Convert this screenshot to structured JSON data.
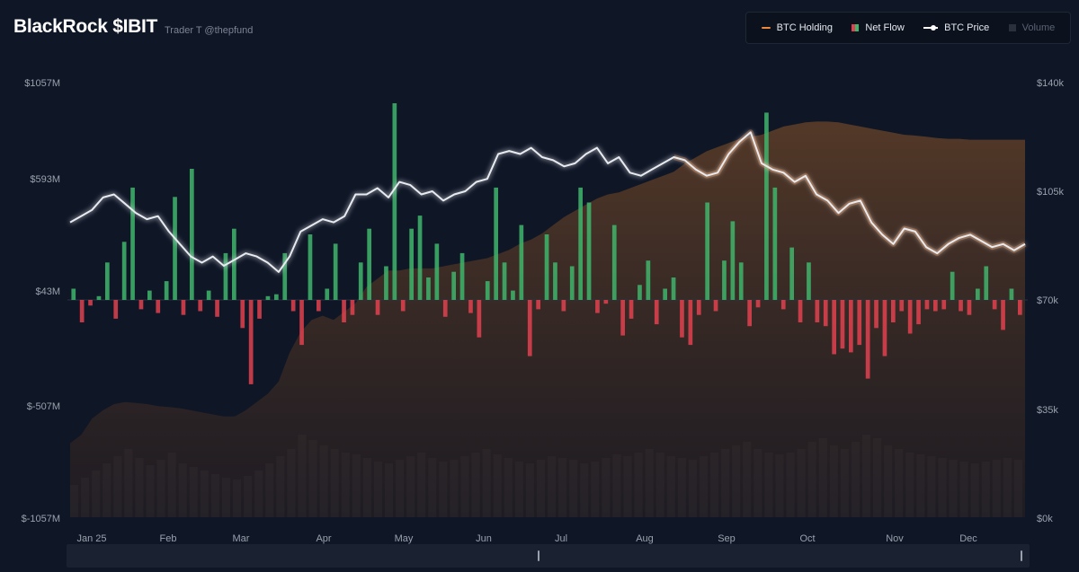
{
  "header": {
    "title": "BlackRock $IBIT",
    "byline": "Trader T @thepfund"
  },
  "legend": {
    "items": [
      {
        "key": "holding",
        "label": "BTC Holding",
        "color": "#f0883e",
        "active": true
      },
      {
        "key": "flow",
        "label": "Net Flow",
        "color_pos": "#3fb56b",
        "color_neg": "#e0414f",
        "active": true
      },
      {
        "key": "price",
        "label": "BTC Price",
        "color": "#ffffff",
        "active": true
      },
      {
        "key": "volume",
        "label": "Volume",
        "color": "#3a3f4b",
        "active": false
      }
    ]
  },
  "chart_data": {
    "type": "bar",
    "left_axis": {
      "ticks": [
        "$1057M",
        "$593M",
        "$43M",
        "$-507M",
        "$-1057M"
      ],
      "range": [
        -1057,
        1057
      ],
      "unit": "M USD"
    },
    "right_axis": {
      "ticks": [
        "$140k",
        "$105k",
        "$70k",
        "$35k",
        "$0k"
      ],
      "range": [
        0,
        140000
      ]
    },
    "months": [
      "Jan 25",
      "Feb",
      "Mar",
      "Apr",
      "May",
      "Jun",
      "Jul",
      "Aug",
      "Sep",
      "Oct",
      "Nov",
      "Dec"
    ],
    "price": {
      "name": "BTC Price",
      "values": [
        95000,
        97000,
        99000,
        103000,
        104000,
        101000,
        98000,
        96000,
        97000,
        92000,
        88000,
        84000,
        82000,
        84000,
        81000,
        83000,
        85000,
        84000,
        82000,
        79000,
        84000,
        92000,
        94000,
        96000,
        95000,
        97000,
        104000,
        104000,
        106000,
        103000,
        108000,
        107000,
        104000,
        105000,
        102000,
        104000,
        105000,
        108000,
        109000,
        117000,
        118000,
        117000,
        119000,
        116000,
        115000,
        113000,
        114000,
        117000,
        119000,
        114000,
        116000,
        111000,
        110000,
        112000,
        114000,
        116000,
        115000,
        112000,
        110000,
        111000,
        117000,
        121000,
        124000,
        114000,
        112000,
        111000,
        108000,
        110000,
        104000,
        102000,
        98000,
        101000,
        102000,
        95000,
        91000,
        88000,
        93000,
        92000,
        87000,
        85000,
        88000,
        90000,
        91000,
        89000,
        87000,
        88000,
        86000,
        88000
      ]
    },
    "holding": {
      "name": "BTC Holding",
      "values": [
        480000,
        500000,
        540000,
        560000,
        575000,
        580000,
        578000,
        575000,
        570000,
        568000,
        565000,
        560000,
        555000,
        550000,
        545000,
        545000,
        560000,
        580000,
        600000,
        630000,
        700000,
        750000,
        780000,
        790000,
        780000,
        800000,
        820000,
        860000,
        880000,
        900000,
        900000,
        905000,
        905000,
        905000,
        910000,
        915000,
        920000,
        925000,
        930000,
        940000,
        950000,
        965000,
        975000,
        990000,
        1010000,
        1030000,
        1045000,
        1060000,
        1075000,
        1085000,
        1090000,
        1100000,
        1110000,
        1120000,
        1130000,
        1140000,
        1160000,
        1175000,
        1190000,
        1200000,
        1210000,
        1220000,
        1225000,
        1230000,
        1240000,
        1250000,
        1255000,
        1260000,
        1262000,
        1262000,
        1260000,
        1255000,
        1250000,
        1245000,
        1240000,
        1235000,
        1230000,
        1228000,
        1225000,
        1222000,
        1220000,
        1220000,
        1218000,
        1218000,
        1218000,
        1218000,
        1218000,
        1218000
      ]
    },
    "net_flow": {
      "name": "Net Flow",
      "unit": "M USD",
      "values": [
        60,
        -120,
        -30,
        20,
        200,
        -100,
        310,
        600,
        -50,
        50,
        -70,
        100,
        550,
        -80,
        700,
        -60,
        50,
        -90,
        250,
        380,
        -150,
        -450,
        -100,
        20,
        30,
        250,
        -60,
        -240,
        350,
        -60,
        60,
        300,
        -120,
        -80,
        200,
        380,
        -80,
        180,
        1050,
        -60,
        380,
        450,
        120,
        300,
        -90,
        150,
        250,
        -70,
        -200,
        100,
        600,
        200,
        50,
        400,
        -300,
        -50,
        350,
        200,
        -60,
        180,
        600,
        520,
        -70,
        -20,
        400,
        -190,
        -100,
        80,
        210,
        -130,
        60,
        120,
        -200,
        -240,
        -80,
        520,
        -60,
        210,
        420,
        200,
        -140,
        -40,
        1000,
        600,
        -50,
        280,
        -120,
        200,
        -120,
        -140,
        -290,
        -260,
        -280,
        -240,
        -420,
        -150,
        -300,
        -120,
        -60,
        -180,
        -130,
        -50,
        -60,
        -50,
        150,
        -60,
        -80,
        60,
        180,
        -50,
        -160,
        60,
        -80
      ]
    },
    "volume": {
      "name": "Volume",
      "values": [
        180,
        220,
        260,
        300,
        340,
        380,
        330,
        290,
        320,
        360,
        300,
        280,
        260,
        240,
        220,
        210,
        230,
        260,
        300,
        340,
        380,
        460,
        430,
        400,
        380,
        360,
        350,
        330,
        310,
        300,
        320,
        340,
        360,
        330,
        310,
        320,
        340,
        360,
        380,
        350,
        330,
        310,
        300,
        320,
        340,
        330,
        320,
        300,
        310,
        330,
        350,
        340,
        360,
        380,
        360,
        340,
        330,
        320,
        340,
        360,
        380,
        400,
        420,
        380,
        360,
        350,
        360,
        380,
        420,
        440,
        400,
        380,
        420,
        460,
        440,
        400,
        380,
        360,
        350,
        340,
        330,
        320,
        310,
        300,
        310,
        320,
        330,
        320
      ]
    },
    "ylabel": "",
    "xlabel": ""
  }
}
